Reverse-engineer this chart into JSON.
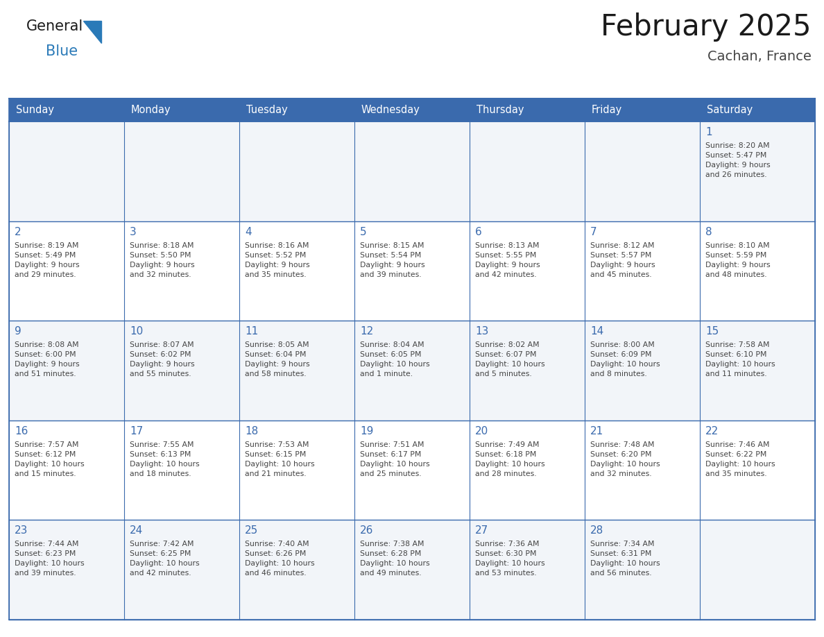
{
  "title": "February 2025",
  "subtitle": "Cachan, France",
  "days_of_week": [
    "Sunday",
    "Monday",
    "Tuesday",
    "Wednesday",
    "Thursday",
    "Friday",
    "Saturday"
  ],
  "header_bg": "#3a6aad",
  "header_text": "#ffffff",
  "cell_bg_odd": "#f2f5f9",
  "cell_bg_even": "#ffffff",
  "border_color": "#3a6aad",
  "inner_border_color": "#3a6aad",
  "day_number_color": "#3a6aad",
  "cell_text_color": "#444444",
  "title_color": "#1a1a1a",
  "subtitle_color": "#444444",
  "logo_general_color": "#1a1a1a",
  "logo_blue_color": "#2a7ab8",
  "calendar_data": [
    [
      {
        "day": null,
        "info": ""
      },
      {
        "day": null,
        "info": ""
      },
      {
        "day": null,
        "info": ""
      },
      {
        "day": null,
        "info": ""
      },
      {
        "day": null,
        "info": ""
      },
      {
        "day": null,
        "info": ""
      },
      {
        "day": 1,
        "info": "Sunrise: 8:20 AM\nSunset: 5:47 PM\nDaylight: 9 hours\nand 26 minutes."
      }
    ],
    [
      {
        "day": 2,
        "info": "Sunrise: 8:19 AM\nSunset: 5:49 PM\nDaylight: 9 hours\nand 29 minutes."
      },
      {
        "day": 3,
        "info": "Sunrise: 8:18 AM\nSunset: 5:50 PM\nDaylight: 9 hours\nand 32 minutes."
      },
      {
        "day": 4,
        "info": "Sunrise: 8:16 AM\nSunset: 5:52 PM\nDaylight: 9 hours\nand 35 minutes."
      },
      {
        "day": 5,
        "info": "Sunrise: 8:15 AM\nSunset: 5:54 PM\nDaylight: 9 hours\nand 39 minutes."
      },
      {
        "day": 6,
        "info": "Sunrise: 8:13 AM\nSunset: 5:55 PM\nDaylight: 9 hours\nand 42 minutes."
      },
      {
        "day": 7,
        "info": "Sunrise: 8:12 AM\nSunset: 5:57 PM\nDaylight: 9 hours\nand 45 minutes."
      },
      {
        "day": 8,
        "info": "Sunrise: 8:10 AM\nSunset: 5:59 PM\nDaylight: 9 hours\nand 48 minutes."
      }
    ],
    [
      {
        "day": 9,
        "info": "Sunrise: 8:08 AM\nSunset: 6:00 PM\nDaylight: 9 hours\nand 51 minutes."
      },
      {
        "day": 10,
        "info": "Sunrise: 8:07 AM\nSunset: 6:02 PM\nDaylight: 9 hours\nand 55 minutes."
      },
      {
        "day": 11,
        "info": "Sunrise: 8:05 AM\nSunset: 6:04 PM\nDaylight: 9 hours\nand 58 minutes."
      },
      {
        "day": 12,
        "info": "Sunrise: 8:04 AM\nSunset: 6:05 PM\nDaylight: 10 hours\nand 1 minute."
      },
      {
        "day": 13,
        "info": "Sunrise: 8:02 AM\nSunset: 6:07 PM\nDaylight: 10 hours\nand 5 minutes."
      },
      {
        "day": 14,
        "info": "Sunrise: 8:00 AM\nSunset: 6:09 PM\nDaylight: 10 hours\nand 8 minutes."
      },
      {
        "day": 15,
        "info": "Sunrise: 7:58 AM\nSunset: 6:10 PM\nDaylight: 10 hours\nand 11 minutes."
      }
    ],
    [
      {
        "day": 16,
        "info": "Sunrise: 7:57 AM\nSunset: 6:12 PM\nDaylight: 10 hours\nand 15 minutes."
      },
      {
        "day": 17,
        "info": "Sunrise: 7:55 AM\nSunset: 6:13 PM\nDaylight: 10 hours\nand 18 minutes."
      },
      {
        "day": 18,
        "info": "Sunrise: 7:53 AM\nSunset: 6:15 PM\nDaylight: 10 hours\nand 21 minutes."
      },
      {
        "day": 19,
        "info": "Sunrise: 7:51 AM\nSunset: 6:17 PM\nDaylight: 10 hours\nand 25 minutes."
      },
      {
        "day": 20,
        "info": "Sunrise: 7:49 AM\nSunset: 6:18 PM\nDaylight: 10 hours\nand 28 minutes."
      },
      {
        "day": 21,
        "info": "Sunrise: 7:48 AM\nSunset: 6:20 PM\nDaylight: 10 hours\nand 32 minutes."
      },
      {
        "day": 22,
        "info": "Sunrise: 7:46 AM\nSunset: 6:22 PM\nDaylight: 10 hours\nand 35 minutes."
      }
    ],
    [
      {
        "day": 23,
        "info": "Sunrise: 7:44 AM\nSunset: 6:23 PM\nDaylight: 10 hours\nand 39 minutes."
      },
      {
        "day": 24,
        "info": "Sunrise: 7:42 AM\nSunset: 6:25 PM\nDaylight: 10 hours\nand 42 minutes."
      },
      {
        "day": 25,
        "info": "Sunrise: 7:40 AM\nSunset: 6:26 PM\nDaylight: 10 hours\nand 46 minutes."
      },
      {
        "day": 26,
        "info": "Sunrise: 7:38 AM\nSunset: 6:28 PM\nDaylight: 10 hours\nand 49 minutes."
      },
      {
        "day": 27,
        "info": "Sunrise: 7:36 AM\nSunset: 6:30 PM\nDaylight: 10 hours\nand 53 minutes."
      },
      {
        "day": 28,
        "info": "Sunrise: 7:34 AM\nSunset: 6:31 PM\nDaylight: 10 hours\nand 56 minutes."
      },
      {
        "day": null,
        "info": ""
      }
    ]
  ]
}
